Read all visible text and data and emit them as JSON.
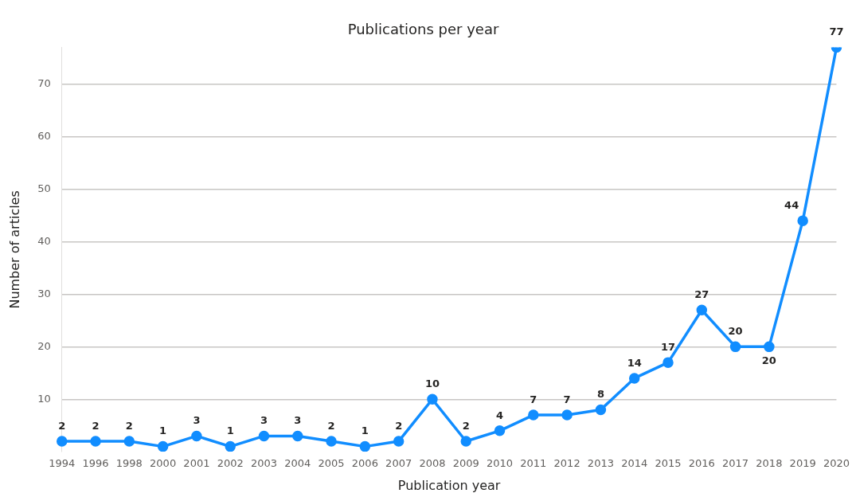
{
  "chart_data": {
    "type": "line",
    "title": "Publications per year",
    "xlabel": "Publication year",
    "ylabel": "Number of articles",
    "categories": [
      "1994",
      "1996",
      "1998",
      "2000",
      "2001",
      "2002",
      "2003",
      "2004",
      "2005",
      "2006",
      "2007",
      "2008",
      "2009",
      "2010",
      "2011",
      "2012",
      "2013",
      "2014",
      "2015",
      "2016",
      "2017",
      "2018",
      "2019",
      "2020"
    ],
    "series": [
      {
        "color": "#118dff",
        "values": [
          2,
          2,
          2,
          1,
          3,
          1,
          3,
          3,
          2,
          1,
          2,
          10,
          2,
          4,
          7,
          7,
          8,
          14,
          17,
          27,
          20,
          20,
          44,
          77
        ]
      }
    ],
    "ylim": [
      0,
      77
    ],
    "yticks": [
      10,
      20,
      30,
      40,
      50,
      60,
      70
    ],
    "grid": "y",
    "marker": "circle",
    "line_style": "solid",
    "data_labels": true,
    "legend": false
  }
}
